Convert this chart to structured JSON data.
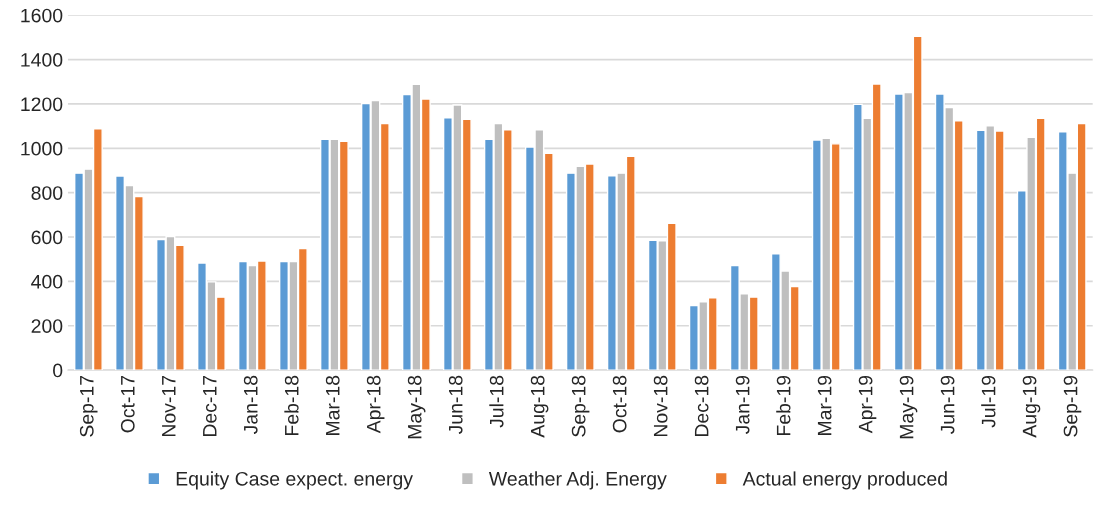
{
  "chart_data": {
    "type": "bar",
    "categories": [
      "Sep-17",
      "Oct-17",
      "Nov-17",
      "Dec-17",
      "Jan-18",
      "Feb-18",
      "Mar-18",
      "Apr-18",
      "May-18",
      "Jun-18",
      "Jul-18",
      "Aug-18",
      "Sep-18",
      "Oct-18",
      "Nov-18",
      "Dec-18",
      "Jan-19",
      "Feb-19",
      "Mar-19",
      "Apr-19",
      "May-19",
      "Jun-19",
      "Jul-19",
      "Aug-19",
      "Sep-19"
    ],
    "series": [
      {
        "name": "Equity Case expect. energy",
        "color": "#5b9bd5",
        "values": [
          888,
          875,
          589,
          483,
          489,
          489,
          1040,
          1202,
          1242,
          1137,
          1040,
          1006,
          888,
          876,
          585,
          291,
          471,
          524,
          1037,
          1198,
          1245,
          1245,
          1081,
          808,
          1074
        ]
      },
      {
        "name": "Weather Adj. Energy",
        "color": "#bfbfbf",
        "values": [
          906,
          832,
          602,
          398,
          471,
          489,
          1040,
          1215,
          1289,
          1195,
          1112,
          1083,
          919,
          888,
          583,
          308,
          344,
          447,
          1045,
          1135,
          1251,
          1184,
          1101,
          1050,
          888
        ]
      },
      {
        "name": "Actual energy produced",
        "color": "#ed7d31",
        "values": [
          1088,
          782,
          563,
          329,
          492,
          548,
          1032,
          1112,
          1222,
          1131,
          1083,
          977,
          929,
          964,
          662,
          326,
          329,
          377,
          1020,
          1290,
          1505,
          1124,
          1078,
          1135,
          1112
        ]
      }
    ],
    "ylim": [
      0,
      1600
    ],
    "yticks": [
      0,
      200,
      400,
      600,
      800,
      1000,
      1200,
      1400,
      1600
    ],
    "grid": "y",
    "legend": "bottom"
  }
}
